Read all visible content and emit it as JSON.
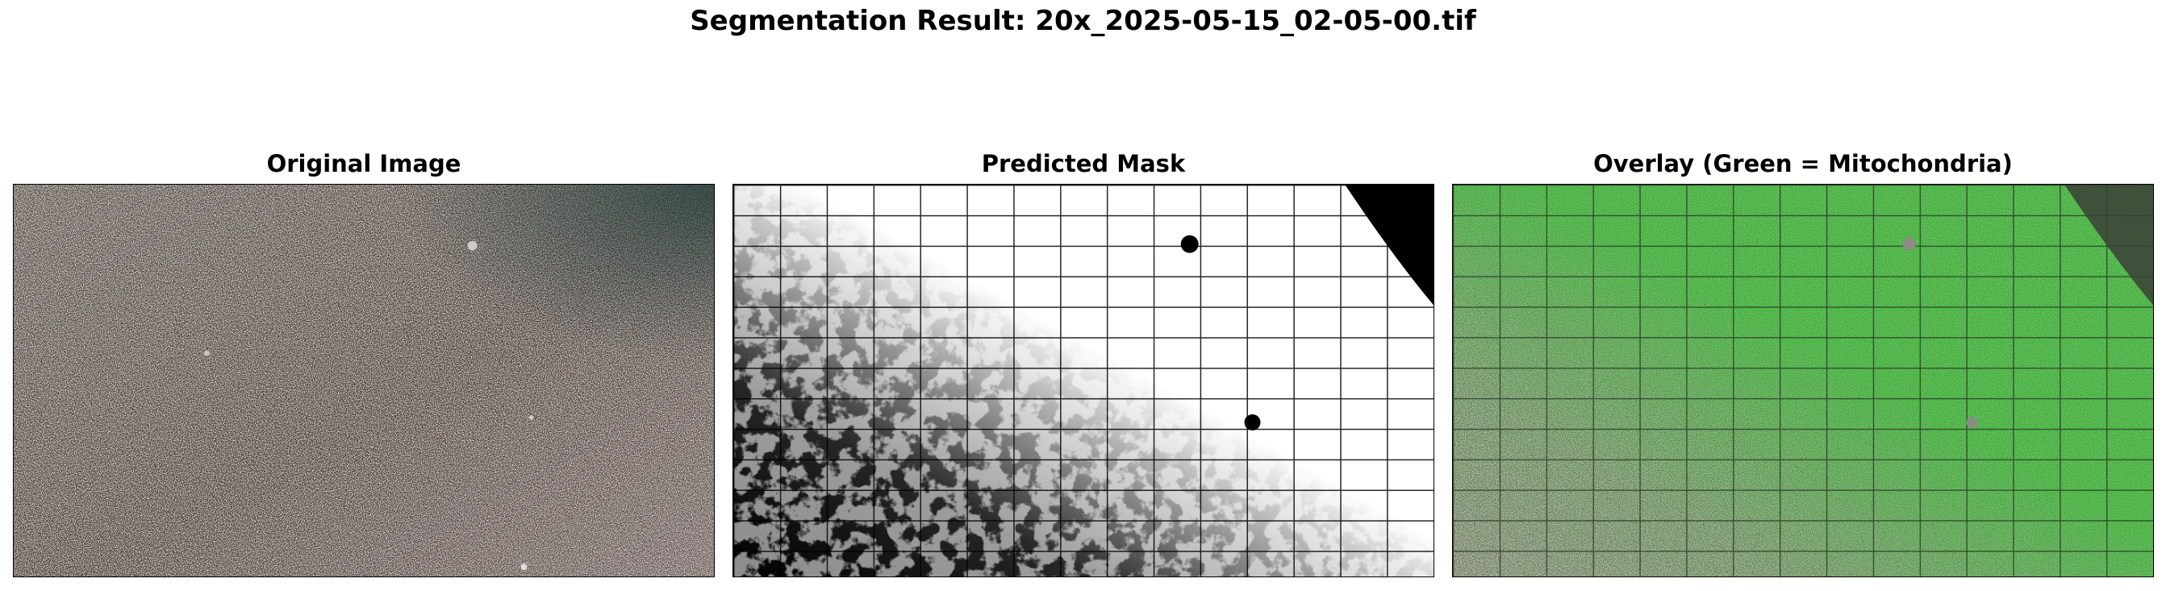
{
  "figure": {
    "title": "Segmentation Result: 20x_2025-05-15_02-05-00.tif"
  },
  "panels": [
    {
      "title": "Original Image"
    },
    {
      "title": "Predicted Mask"
    },
    {
      "title": "Overlay (Green = Mitochondria)"
    }
  ],
  "colors": {
    "background": "#ffffff",
    "mask_foreground": "#ffffff",
    "mask_background": "#000000",
    "overlay_green": "#3fa83a",
    "original_tint": "#7a6a5e"
  }
}
